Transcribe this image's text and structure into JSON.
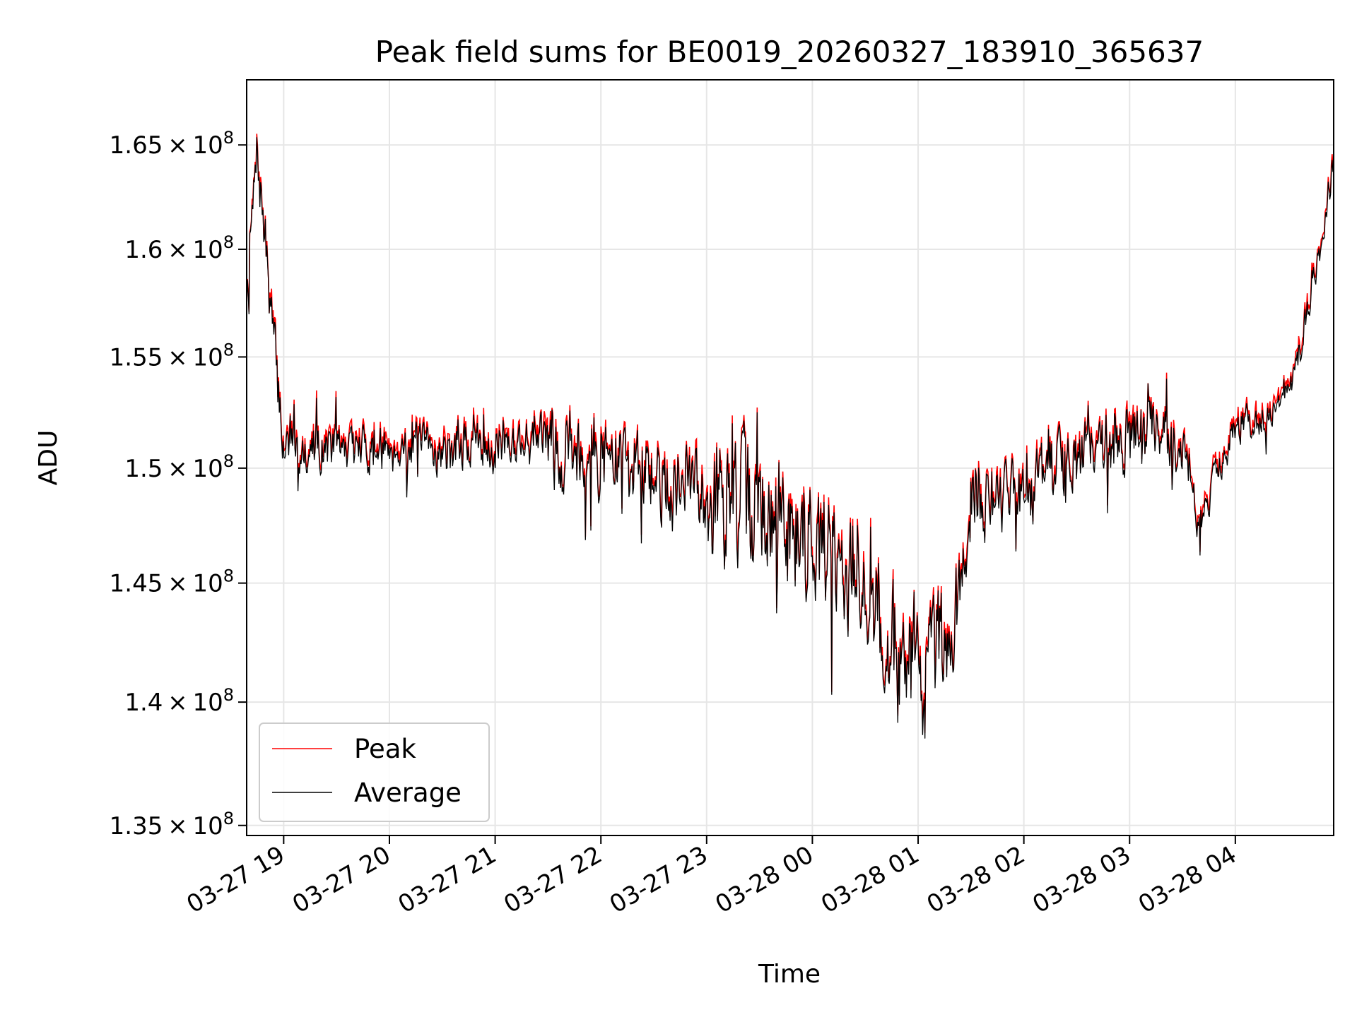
{
  "chart_data": {
    "type": "line",
    "title": "Peak field sums for BE0019_20260327_183910_365637",
    "xlabel": "Time",
    "ylabel": "ADU",
    "y_scale": "log",
    "ylim": [
      134600000,
      168200000
    ],
    "xlim_hours": [
      18.65,
      4.93
    ],
    "grid": true,
    "legend_position": "lower-left",
    "x_ticks": [
      {
        "hour": 19,
        "label": "03-27 19"
      },
      {
        "hour": 20,
        "label": "03-27 20"
      },
      {
        "hour": 21,
        "label": "03-27 21"
      },
      {
        "hour": 22,
        "label": "03-27 22"
      },
      {
        "hour": 23,
        "label": "03-27 23"
      },
      {
        "hour": 24,
        "label": "03-28 00"
      },
      {
        "hour": 25,
        "label": "03-28 01"
      },
      {
        "hour": 26,
        "label": "03-28 02"
      },
      {
        "hour": 27,
        "label": "03-28 03"
      },
      {
        "hour": 28,
        "label": "03-28 04"
      }
    ],
    "y_ticks": [
      {
        "value": 135000000,
        "mantissa": "1.35",
        "exponent": "8"
      },
      {
        "value": 140000000,
        "mantissa": "1.4",
        "exponent": "8"
      },
      {
        "value": 145000000,
        "mantissa": "1.45",
        "exponent": "8"
      },
      {
        "value": 150000000,
        "mantissa": "1.5",
        "exponent": "8"
      },
      {
        "value": 155000000,
        "mantissa": "1.55",
        "exponent": "8"
      },
      {
        "value": 160000000,
        "mantissa": "1.6",
        "exponent": "8"
      },
      {
        "value": 165000000,
        "mantissa": "1.65",
        "exponent": "8"
      }
    ],
    "trend_hours": [
      18.65,
      18.75,
      18.9,
      19.0,
      19.5,
      20.0,
      20.5,
      21.0,
      21.5,
      22.0,
      22.5,
      23.0,
      23.5,
      24.0,
      24.5,
      24.8,
      25.0,
      25.3,
      25.5,
      26.0,
      26.5,
      27.0,
      27.5,
      27.65,
      27.8,
      28.0,
      28.4,
      28.6,
      28.8,
      28.93
    ],
    "trend_values": [
      158000000,
      164500000,
      156000000,
      151000000,
      150800000,
      151000000,
      150800000,
      151200000,
      151200000,
      150600000,
      149500000,
      149000000,
      148000000,
      147000000,
      145000000,
      142000000,
      141500000,
      141500000,
      148500000,
      148800000,
      150500000,
      151500000,
      151200000,
      147500000,
      149500000,
      152000000,
      152500000,
      155000000,
      160000000,
      164500000
    ],
    "series": [
      {
        "name": "Peak",
        "color": "#ff0000",
        "offset": 250000,
        "noise_seed": 1
      },
      {
        "name": "Average",
        "color": "#000000",
        "offset": 0,
        "noise_seed": 2
      }
    ],
    "points_per_series": 1400
  }
}
